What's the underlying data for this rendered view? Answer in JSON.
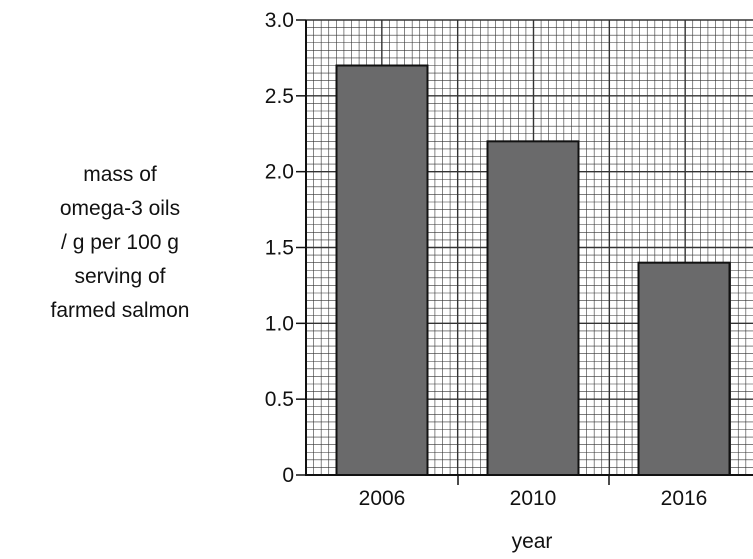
{
  "chart_data": {
    "type": "bar",
    "categories": [
      "2006",
      "2010",
      "2016"
    ],
    "values": [
      2.7,
      2.2,
      1.4
    ],
    "title": "",
    "xlabel": "year",
    "ylabel_lines": [
      "mass of",
      "omega-3 oils",
      "/ g per 100 g",
      "serving of",
      "farmed salmon"
    ],
    "ylim": [
      0,
      3.0
    ],
    "yticks": [
      "0",
      "0.5",
      "1.0",
      "1.5",
      "2.0",
      "2.5",
      "3.0"
    ],
    "grid": true,
    "bar_color": "#6a6a6b",
    "grid_color": "#333333"
  }
}
